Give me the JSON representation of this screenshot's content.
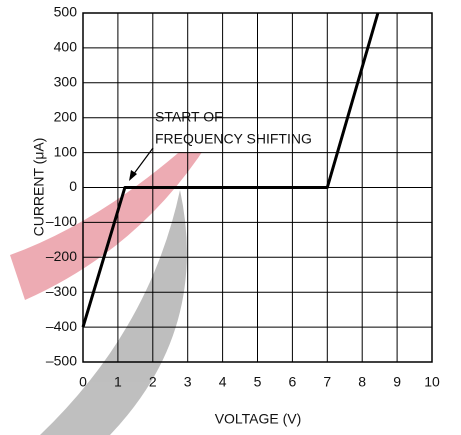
{
  "chart_data": {
    "type": "line",
    "x_label": "VOLTAGE (V)",
    "y_label": "CURRENT (μA)",
    "annotation_lines": [
      "START OF",
      "FREQUENCY SHIFTING"
    ],
    "x": [
      0,
      1.2,
      1.4,
      7.0,
      8.45
    ],
    "series": [
      {
        "color": "#000000",
        "values": [
          -400,
          0,
          0,
          0,
          500
        ]
      }
    ],
    "xlim": [
      0,
      10
    ],
    "xticks": [
      0,
      1,
      2,
      3,
      4,
      5,
      6,
      7,
      8,
      9,
      10
    ],
    "ylim": [
      -500,
      500
    ],
    "yticks": [
      {
        "value": -500,
        "label": "–500"
      },
      {
        "value": -400,
        "label": "–400"
      },
      {
        "value": -300,
        "label": "–300"
      },
      {
        "value": -200,
        "label": "–200"
      },
      {
        "value": -100,
        "label": "–100"
      },
      0,
      100,
      200,
      300,
      400,
      500
    ],
    "grid": true
  }
}
